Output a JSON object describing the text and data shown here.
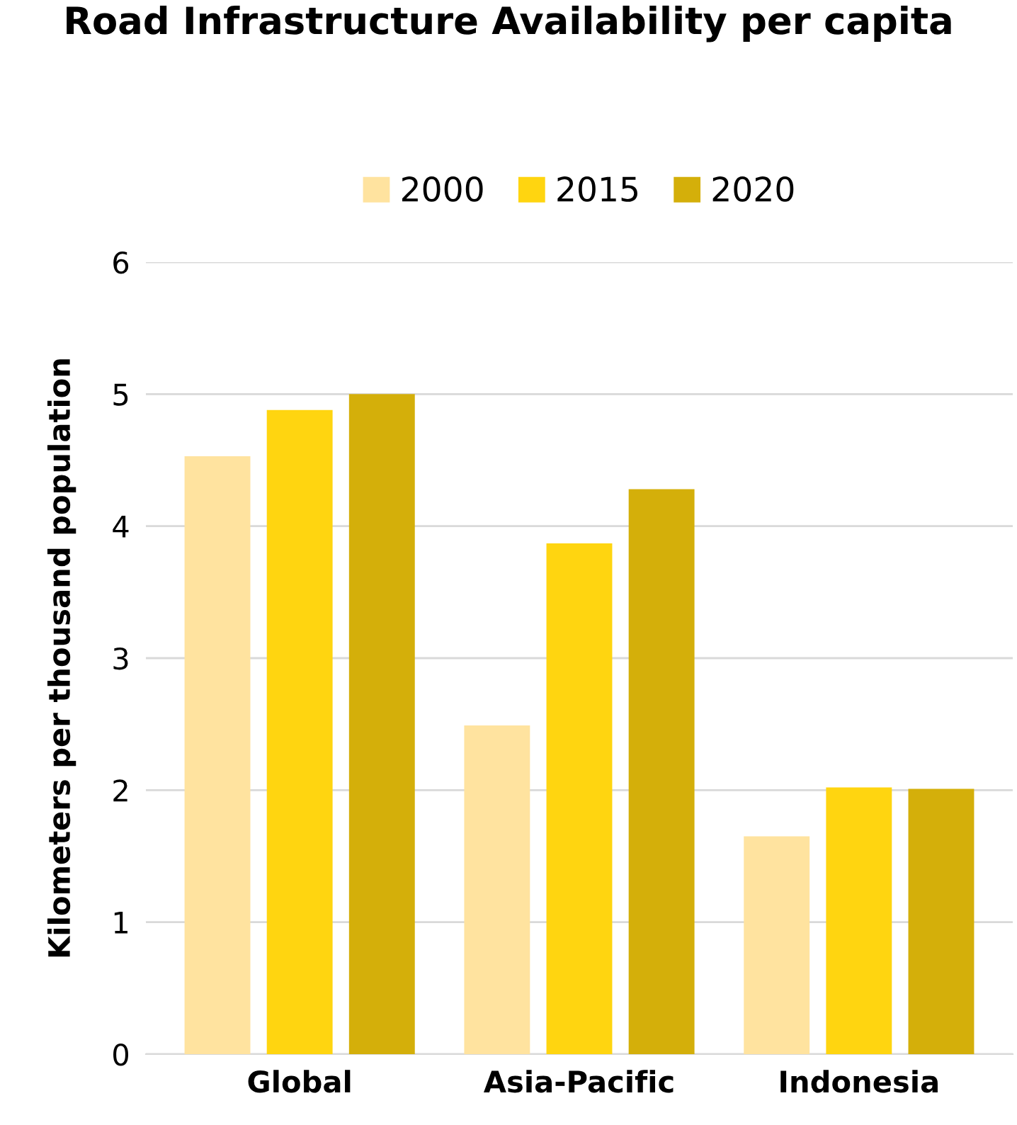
{
  "chart_data": {
    "type": "bar",
    "title": "Road Infrastructure Availability per capita",
    "ylabel": "Kilometers per thousand population",
    "categories": [
      "Global",
      "Asia-Pacific",
      "Indonesia"
    ],
    "series": [
      {
        "name": "2000",
        "color": "#ffe39f",
        "values": [
          4.53,
          2.49,
          1.65
        ]
      },
      {
        "name": "2015",
        "color": "#ffd510",
        "values": [
          4.88,
          3.87,
          2.02
        ]
      },
      {
        "name": "2020",
        "color": "#d4af0a",
        "values": [
          5.0,
          4.28,
          2.01
        ]
      }
    ],
    "ylim": [
      0,
      6
    ],
    "yticks": [
      0,
      1,
      2,
      3,
      4,
      5,
      6
    ],
    "grid": "y",
    "legend": "top"
  }
}
